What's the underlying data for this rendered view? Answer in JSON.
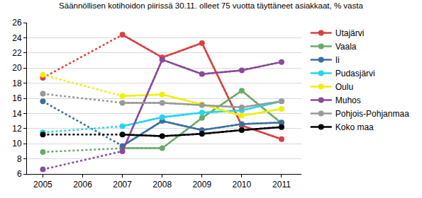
{
  "chart_data": {
    "type": "line",
    "title": "Säännöllisen kotihoidon piirissä 30.11. olleet 75 vuotta täyttäneet asiakkaat, % vasta",
    "x": [
      2005,
      2006,
      2007,
      2008,
      2009,
      2010,
      2011
    ],
    "xlim": [
      2004.6,
      2011.5
    ],
    "xticks": [
      2005,
      2006,
      2007,
      2008,
      2009,
      2010,
      2011
    ],
    "ylim": [
      6,
      26
    ],
    "yticks": [
      6,
      8,
      10,
      12,
      14,
      16,
      18,
      20,
      22,
      24,
      26
    ],
    "grid": true,
    "legend": "right",
    "marker": "circle",
    "series": [
      {
        "name": "Utajärvi",
        "color": "#d9413f",
        "values": [
          18.7,
          null,
          24.4,
          21.4,
          23.3,
          12.4,
          10.6
        ]
      },
      {
        "name": "Vaala",
        "color": "#6aaa6a",
        "values": [
          8.9,
          null,
          9.4,
          9.4,
          13.4,
          17.0,
          12.7
        ]
      },
      {
        "name": "Ii",
        "color": "#3a6fa0",
        "values": [
          15.6,
          null,
          9.7,
          13.0,
          11.8,
          12.6,
          12.8
        ]
      },
      {
        "name": "Pudasjärvi",
        "color": "#22d6f0",
        "values": [
          11.5,
          null,
          12.3,
          13.5,
          14.1,
          14.4,
          15.6
        ]
      },
      {
        "name": "Oulu",
        "color": "#f0f000",
        "values": [
          19.1,
          null,
          16.3,
          16.5,
          15.2,
          13.7,
          14.6
        ]
      },
      {
        "name": "Muhos",
        "color": "#8b4a9a",
        "values": [
          6.6,
          null,
          9.0,
          21.1,
          19.2,
          19.7,
          20.8
        ]
      },
      {
        "name": "Pohjois-Pohjanmaa",
        "color": "#999999",
        "values": [
          16.6,
          null,
          15.4,
          15.4,
          15.1,
          14.8,
          15.6
        ]
      },
      {
        "name": "Koko maa",
        "color": "#000000",
        "values": [
          11.2,
          null,
          11.2,
          11.0,
          11.3,
          11.8,
          12.2
        ]
      }
    ]
  }
}
